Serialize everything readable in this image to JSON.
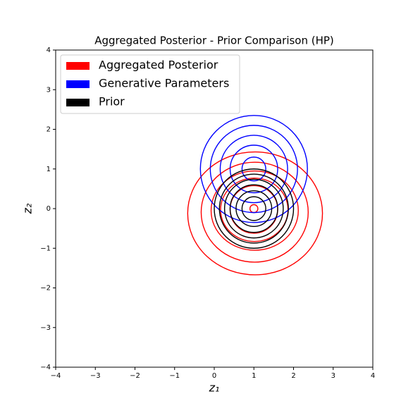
{
  "chart_data": {
    "type": "contour",
    "title": "Aggregated Posterior - Prior Comparison (HP)",
    "x_label": "z₁",
    "y_label": "z₂",
    "xlim": [
      -4,
      4
    ],
    "ylim": [
      -4,
      4
    ],
    "xticks": [
      {
        "value": -4,
        "label": "−4"
      },
      {
        "value": -3,
        "label": "−3"
      },
      {
        "value": -2,
        "label": "−2"
      },
      {
        "value": -1,
        "label": "−1"
      },
      0,
      1,
      2,
      3,
      4
    ],
    "yticks": [
      {
        "value": -4,
        "label": "−4"
      },
      {
        "value": -3,
        "label": "−3"
      },
      {
        "value": -2,
        "label": "−2"
      },
      {
        "value": -1,
        "label": "−1"
      },
      0,
      1,
      2,
      3,
      4
    ],
    "legend": "upper left",
    "series": [
      {
        "name": "Aggregated Posterior",
        "color": "#ff0000",
        "levels": [
          {
            "x": 1.03,
            "y": -0.12,
            "rx": 1.7,
            "ry": 1.55
          },
          {
            "x": 1.02,
            "y": -0.09,
            "rx": 1.35,
            "ry": 1.26
          },
          {
            "x": 1.02,
            "y": -0.05,
            "rx": 1.1,
            "ry": 1.0
          },
          {
            "x": 1.01,
            "y": -0.03,
            "rx": 0.85,
            "ry": 0.8
          },
          {
            "x": 1.0,
            "y": -0.02,
            "rx": 0.6,
            "ry": 0.6
          },
          {
            "x": 1.0,
            "y": 0.0,
            "rx": 0.1,
            "ry": 0.1
          }
        ]
      },
      {
        "name": "Generative Parameters",
        "color": "#0000ff",
        "levels": [
          {
            "x": 1.0,
            "y": 1.0,
            "rx": 1.35,
            "ry": 1.35
          },
          {
            "x": 1.0,
            "y": 1.0,
            "rx": 1.1,
            "ry": 1.1
          },
          {
            "x": 1.0,
            "y": 1.0,
            "rx": 0.85,
            "ry": 0.85
          },
          {
            "x": 1.0,
            "y": 1.0,
            "rx": 0.6,
            "ry": 0.6
          },
          {
            "x": 1.0,
            "y": 1.0,
            "rx": 0.3,
            "ry": 0.3
          }
        ]
      },
      {
        "name": "Prior",
        "color": "#000000",
        "levels": [
          {
            "x": 1.0,
            "y": 0.0,
            "rx": 1.0,
            "ry": 1.0
          },
          {
            "x": 1.0,
            "y": 0.0,
            "rx": 0.87,
            "ry": 0.87
          },
          {
            "x": 1.0,
            "y": 0.0,
            "rx": 0.74,
            "ry": 0.74
          },
          {
            "x": 1.0,
            "y": 0.0,
            "rx": 0.6,
            "ry": 0.6
          },
          {
            "x": 1.0,
            "y": 0.0,
            "rx": 0.45,
            "ry": 0.45
          },
          {
            "x": 1.0,
            "y": 0.0,
            "rx": 0.3,
            "ry": 0.3
          }
        ]
      }
    ]
  }
}
